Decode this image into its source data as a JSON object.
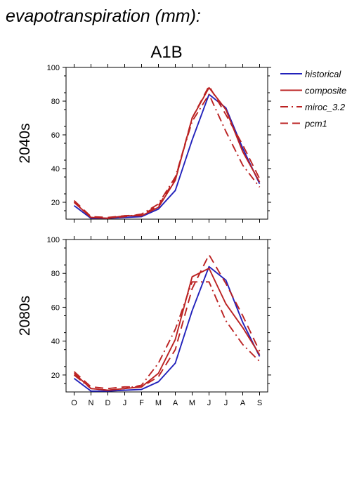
{
  "figure": {
    "title": "evapotranspiration (mm):",
    "scenario": "A1B",
    "colors": {
      "historical": "#2222bb",
      "model": "#bb2222"
    }
  },
  "chart_data": [
    {
      "type": "line",
      "panel_label": "2040s",
      "categories": [
        "O",
        "N",
        "D",
        "J",
        "F",
        "M",
        "A",
        "M",
        "J",
        "J",
        "A",
        "S"
      ],
      "ylim": [
        10,
        100
      ],
      "yticks": [
        20,
        40,
        60,
        80,
        100
      ],
      "series": [
        {
          "name": "historical",
          "style": "solid",
          "color": "#2222bb",
          "values": [
            18,
            10.5,
            10.5,
            11,
            11.5,
            16,
            27,
            57,
            84,
            76,
            52,
            31
          ]
        },
        {
          "name": "composite",
          "style": "solid",
          "color": "#bb2222",
          "values": [
            20,
            11,
            10.5,
            12,
            12,
            17,
            33,
            70,
            88,
            75,
            50,
            32
          ]
        },
        {
          "name": "miroc_3.2",
          "style": "dashdot",
          "color": "#bb2222",
          "values": [
            20,
            11,
            10.5,
            11.5,
            13,
            19,
            35,
            68,
            84,
            62,
            42,
            29
          ]
        },
        {
          "name": "pcm1",
          "style": "dashed",
          "color": "#bb2222",
          "values": [
            21,
            11.5,
            11,
            12,
            12.5,
            18,
            34,
            70,
            89,
            72,
            54,
            34
          ]
        }
      ]
    },
    {
      "type": "line",
      "panel_label": "2080s",
      "categories": [
        "O",
        "N",
        "D",
        "J",
        "F",
        "M",
        "A",
        "M",
        "J",
        "J",
        "A",
        "S"
      ],
      "ylim": [
        10,
        100
      ],
      "yticks": [
        20,
        40,
        60,
        80,
        100
      ],
      "series": [
        {
          "name": "historical",
          "style": "solid",
          "color": "#2222bb",
          "values": [
            18,
            10.5,
            10.5,
            11,
            11.5,
            16,
            27,
            58,
            84,
            76,
            51,
            31
          ]
        },
        {
          "name": "composite",
          "style": "solid",
          "color": "#bb2222",
          "values": [
            21,
            12,
            11,
            12,
            13,
            21,
            41,
            78,
            83,
            62,
            48,
            32
          ]
        },
        {
          "name": "miroc_3.2",
          "style": "dashdot",
          "color": "#bb2222",
          "values": [
            20,
            12,
            11,
            12,
            14,
            27,
            47,
            75,
            75,
            52,
            38,
            28
          ]
        },
        {
          "name": "pcm1",
          "style": "dashed",
          "color": "#bb2222",
          "values": [
            22,
            13,
            12,
            13,
            13,
            19,
            35,
            71,
            91,
            74,
            55,
            34
          ]
        }
      ]
    }
  ],
  "legend": {
    "items": [
      {
        "name": "historical",
        "style": "solid",
        "color": "#2222bb"
      },
      {
        "name": "composite",
        "style": "solid",
        "color": "#bb2222"
      },
      {
        "name": "miroc_3.2",
        "style": "dashdot",
        "color": "#bb2222"
      },
      {
        "name": "pcm1",
        "style": "dashed",
        "color": "#bb2222"
      }
    ]
  }
}
